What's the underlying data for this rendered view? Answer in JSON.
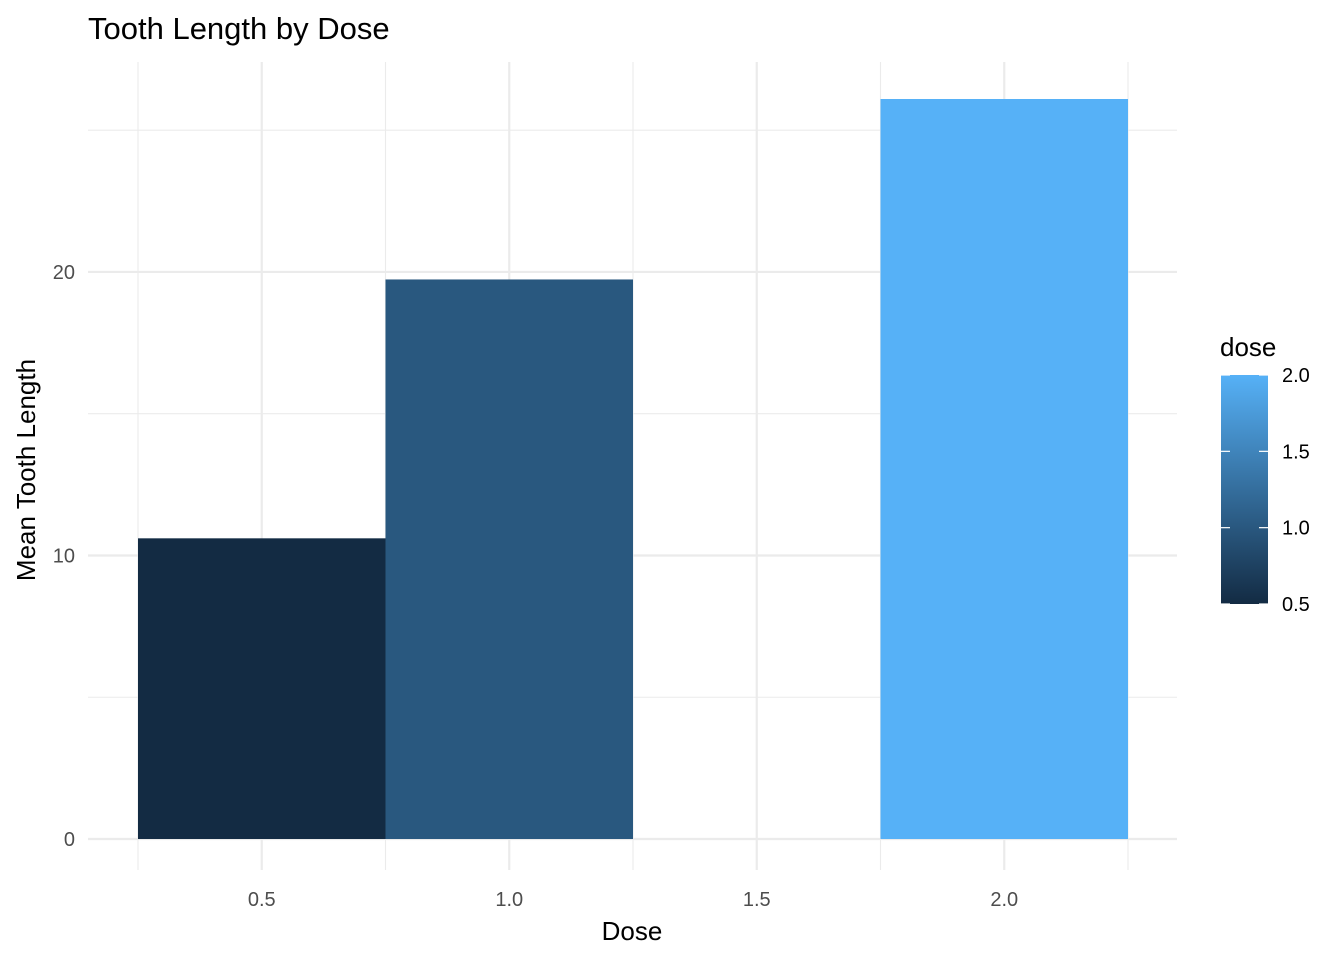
{
  "chart_data": {
    "type": "bar",
    "title": "Tooth Length by Dose",
    "xlabel": "Dose",
    "ylabel": "Mean Tooth Length",
    "x": [
      0.5,
      1.0,
      2.0
    ],
    "values": [
      10.605,
      19.735,
      26.1
    ],
    "bar_width": 0.5,
    "xlim": [
      0.25,
      2.25
    ],
    "ylim": [
      0,
      26.1
    ],
    "x_ticks": [
      0.5,
      1.0,
      1.5,
      2.0
    ],
    "x_tick_labels": [
      "0.5",
      "1.0",
      "1.5",
      "2.0"
    ],
    "y_ticks": [
      0,
      10,
      20
    ],
    "y_tick_labels": [
      "0",
      "10",
      "20"
    ],
    "grid": true,
    "fill_scale": {
      "variable": "dose",
      "low_color": "#132B43",
      "high_color": "#56B1F7",
      "range": [
        0.5,
        2.0
      ]
    },
    "legend": {
      "title": "dose",
      "position": "right",
      "labels": [
        "2.0",
        "1.5",
        "1.0",
        "0.5"
      ],
      "values": [
        2.0,
        1.5,
        1.0,
        0.5
      ]
    }
  }
}
